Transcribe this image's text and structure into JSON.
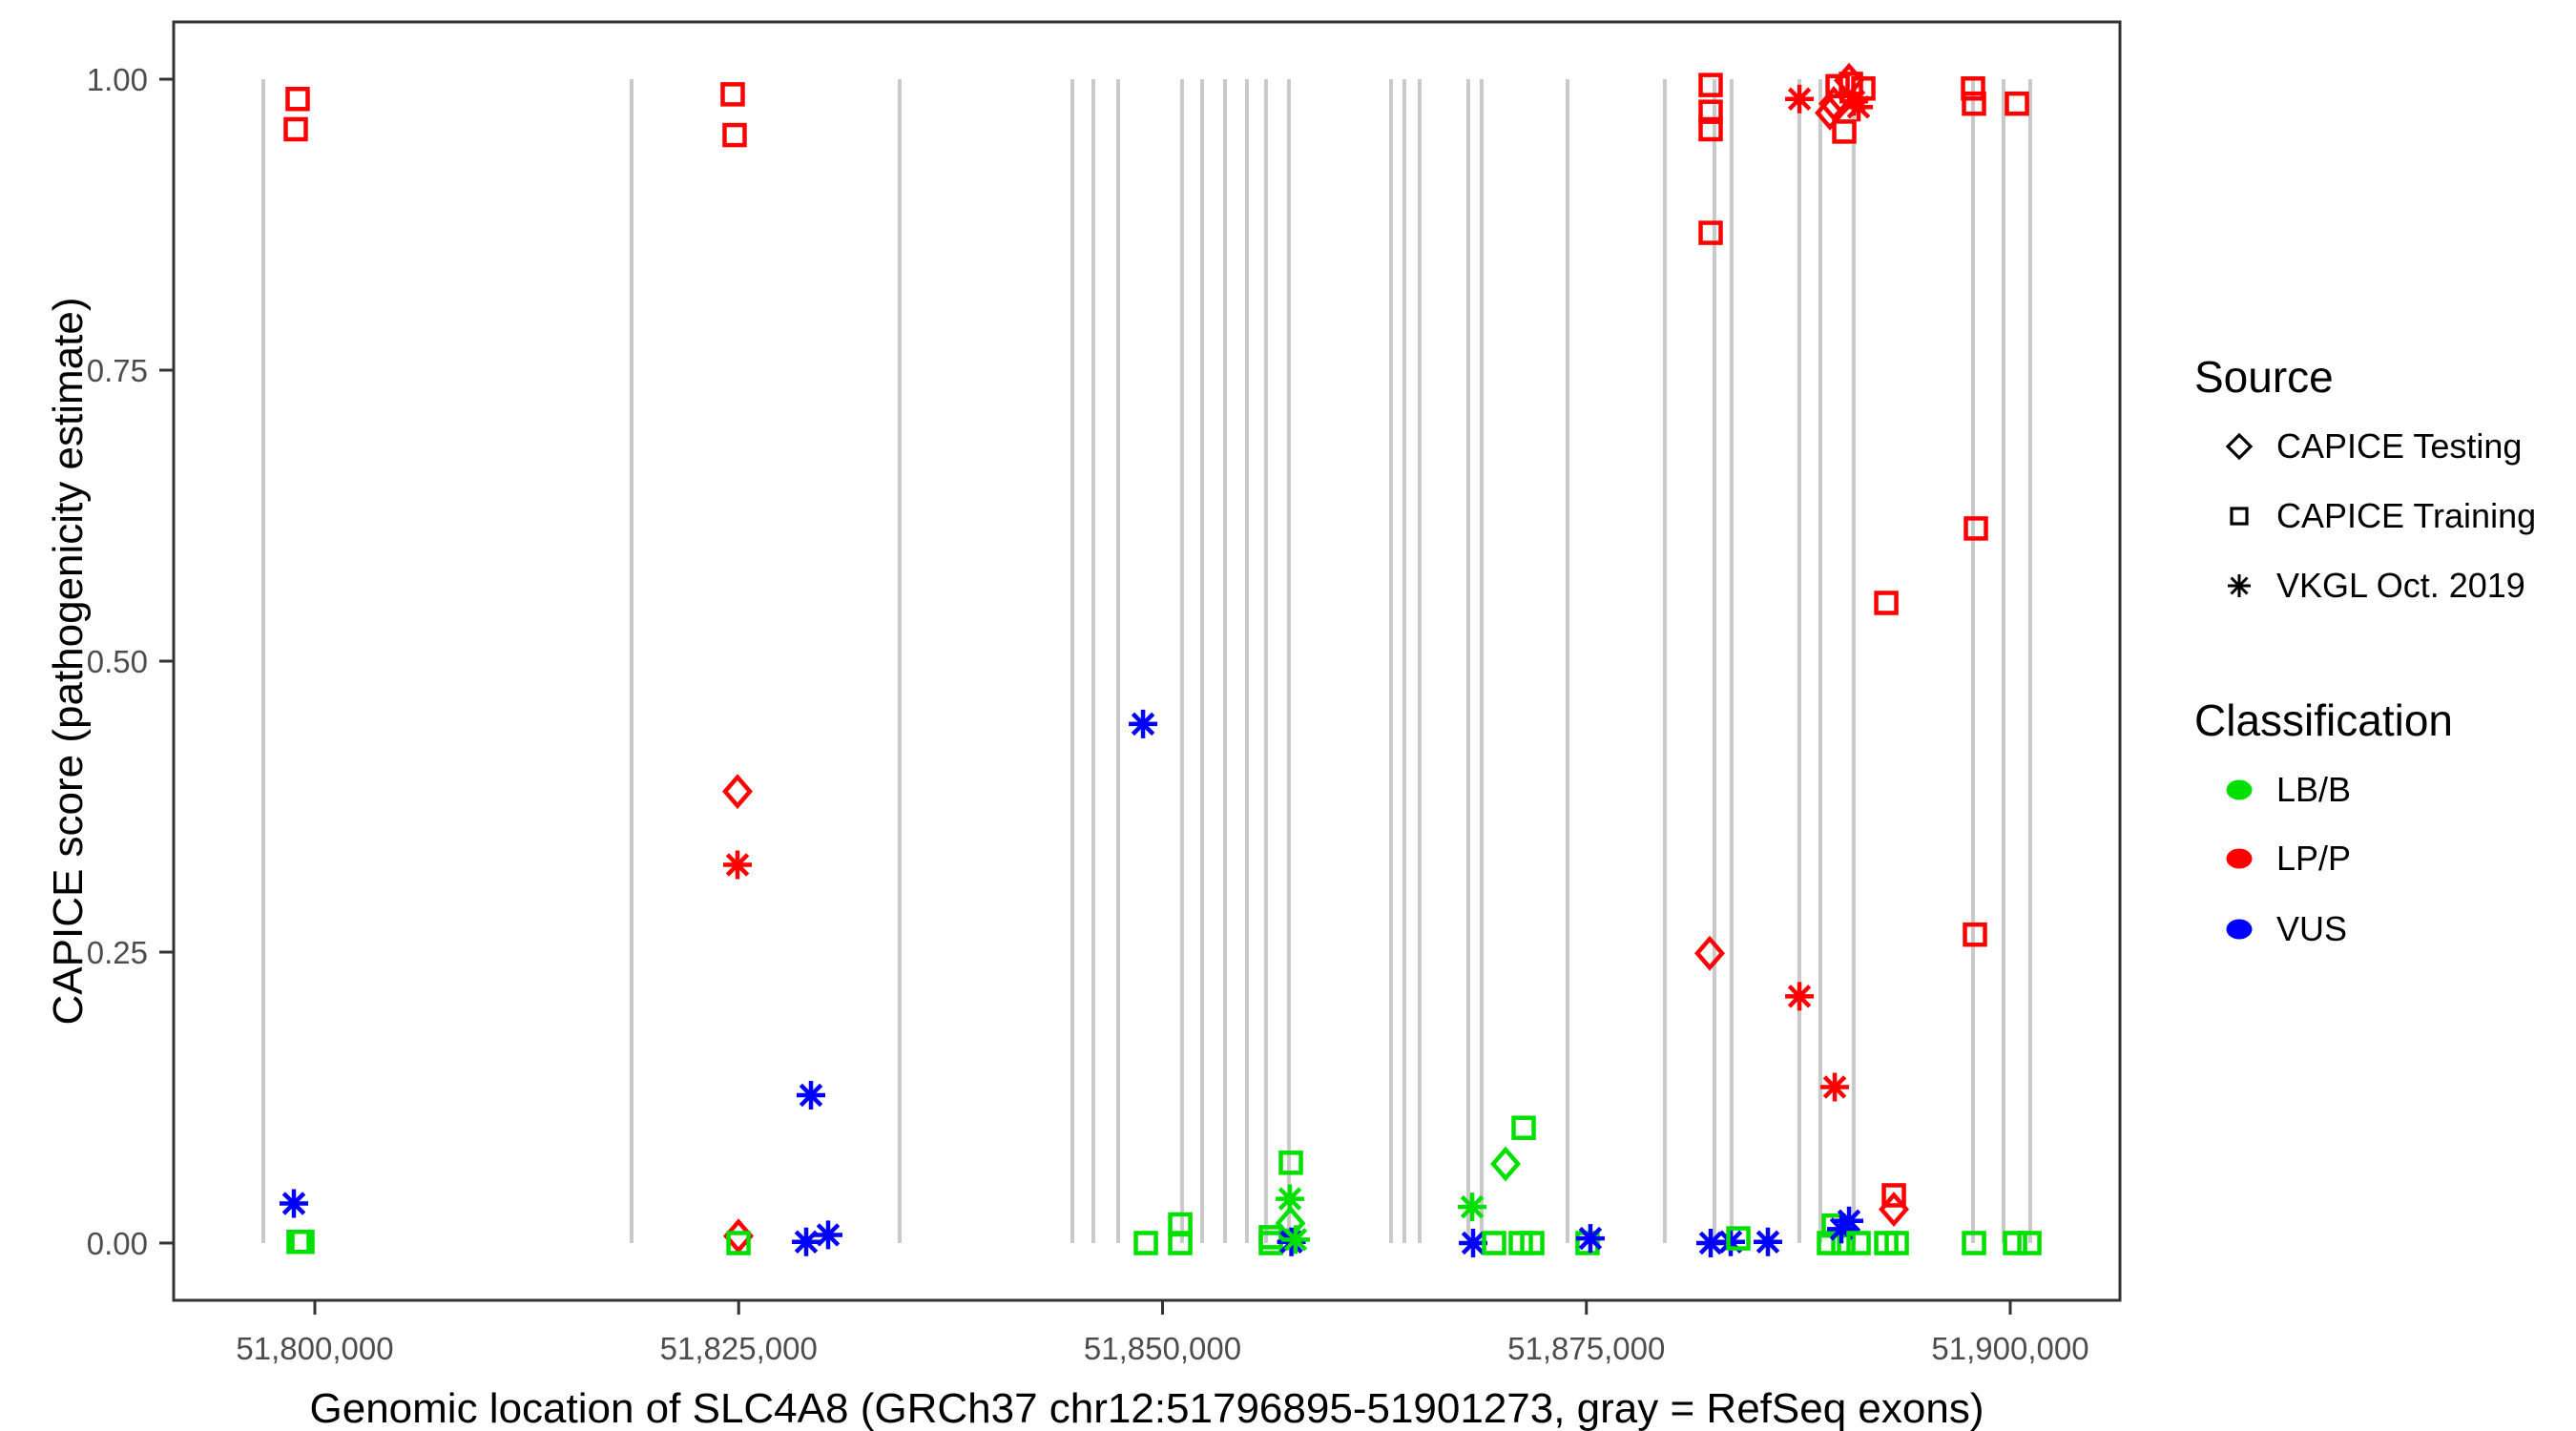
{
  "chart_data": {
    "type": "scatter",
    "title": "",
    "xlabel": "Genomic location of SLC4A8 (GRCh37 chr12:51796895-51901273, gray = RefSeq exons)",
    "ylabel": "CAPICE score (pathogenicity estimate)",
    "xlim": [
      51791672,
      51906471
    ],
    "ylim": [
      -0.0492,
      1.0492
    ],
    "grid": "none",
    "legend_position": "right",
    "x_ticks": [
      {
        "value": 51800000,
        "label": "51,800,000"
      },
      {
        "value": 51825000,
        "label": "51,825,000"
      },
      {
        "value": 51850000,
        "label": "51,850,000"
      },
      {
        "value": 51875000,
        "label": "51,875,000"
      },
      {
        "value": 51900000,
        "label": "51,900,000"
      }
    ],
    "y_ticks": [
      {
        "value": 0.0,
        "label": "0.00"
      },
      {
        "value": 0.25,
        "label": "0.25"
      },
      {
        "value": 0.5,
        "label": "0.50"
      },
      {
        "value": 0.75,
        "label": "0.75"
      },
      {
        "value": 1.0,
        "label": "1.00"
      }
    ],
    "exon_lines": {
      "description": "gray vertical segments = RefSeq exons, drawn from score 0 to 1",
      "color": "#c9c9c9",
      "y_span": [
        0,
        1
      ],
      "x": [
        51796961,
        51818683,
        51834496,
        51844681,
        51845919,
        51847382,
        51851152,
        51852334,
        51853684,
        51854979,
        51856104,
        51857455,
        51863476,
        51864263,
        51865164,
        51868034,
        51868821,
        51873885,
        51879625,
        51882551,
        51883564,
        51887560,
        51888798,
        51890768,
        51897802,
        51899603,
        51901178
      ]
    },
    "legend": {
      "source": {
        "title": "Source",
        "items": [
          {
            "label": "CAPICE Testing",
            "shape": "diamond"
          },
          {
            "label": "CAPICE Training",
            "shape": "square"
          },
          {
            "label": "VKGL Oct. 2019",
            "shape": "asterisk"
          }
        ]
      },
      "classification": {
        "title": "Classification",
        "items": [
          {
            "label": "LB/B",
            "color": "#00e000"
          },
          {
            "label": "LP/P",
            "color": "#ff0000"
          },
          {
            "label": "VUS",
            "color": "#0000ff"
          }
        ]
      }
    },
    "classification_colors": {
      "LB/B": "#00e000",
      "LP/P": "#ff0000",
      "VUS": "#0000ff"
    },
    "points_format": [
      "genomic_position",
      "capice_score",
      "shape(source)",
      "classification"
    ],
    "points": [
      [
        51798762,
        0.034,
        "asterisk",
        "VUS"
      ],
      [
        51798875,
        0.957,
        "square",
        "LP/P"
      ],
      [
        51798987,
        0.983,
        "square",
        "LP/P"
      ],
      [
        51799043,
        0.001,
        "square",
        "LB/B"
      ],
      [
        51799268,
        0.001,
        "square",
        "LB/B"
      ],
      [
        51824648,
        0.987,
        "square",
        "LP/P"
      ],
      [
        51824760,
        0.952,
        "square",
        "LP/P"
      ],
      [
        51824930,
        0.388,
        "diamond",
        "LP/P"
      ],
      [
        51824930,
        0.325,
        "asterisk",
        "LP/P"
      ],
      [
        51824986,
        0.006,
        "diamond",
        "LP/P"
      ],
      [
        51824990,
        0.0,
        "square",
        "LB/B"
      ],
      [
        51828982,
        0.001,
        "asterisk",
        "VUS"
      ],
      [
        51829263,
        0.127,
        "asterisk",
        "VUS"
      ],
      [
        51830276,
        0.007,
        "asterisk",
        "VUS"
      ],
      [
        51848850,
        0.446,
        "asterisk",
        "VUS"
      ],
      [
        51849017,
        0.0,
        "square",
        "LB/B"
      ],
      [
        51851043,
        0.016,
        "square",
        "LB/B"
      ],
      [
        51851043,
        0.0,
        "square",
        "LB/B"
      ],
      [
        51856388,
        0.005,
        "square",
        "LB/B"
      ],
      [
        51856388,
        0.0,
        "square",
        "LB/B"
      ],
      [
        51857513,
        0.038,
        "asterisk",
        "LB/B"
      ],
      [
        51857570,
        0.069,
        "square",
        "LB/B"
      ],
      [
        51857540,
        0.017,
        "diamond",
        "LB/B"
      ],
      [
        51857600,
        0.001,
        "asterisk",
        "VUS"
      ],
      [
        51857851,
        0.003,
        "asterisk",
        "LB/B"
      ],
      [
        51868262,
        0.031,
        "asterisk",
        "LB/B"
      ],
      [
        51868318,
        0.0,
        "asterisk",
        "VUS"
      ],
      [
        51869556,
        0.0,
        "square",
        "LB/B"
      ],
      [
        51870231,
        0.068,
        "diamond",
        "LB/B"
      ],
      [
        51871131,
        0.0,
        "square",
        "LB/B"
      ],
      [
        51871300,
        0.099,
        "square",
        "LB/B"
      ],
      [
        51871807,
        0.0,
        "square",
        "LB/B"
      ],
      [
        51875066,
        0.0,
        "square",
        "LB/B"
      ],
      [
        51875235,
        0.004,
        "asterisk",
        "VUS"
      ],
      [
        51882274,
        0.249,
        "diamond",
        "LP/P"
      ],
      [
        51882330,
        0.995,
        "square",
        "LP/P"
      ],
      [
        51882330,
        0.972,
        "square",
        "LP/P"
      ],
      [
        51882330,
        0.957,
        "square",
        "LP/P"
      ],
      [
        51882330,
        0.868,
        "square",
        "LP/P"
      ],
      [
        51882330,
        0.0,
        "asterisk",
        "VUS"
      ],
      [
        51883512,
        0.001,
        "asterisk",
        "VUS"
      ],
      [
        51883962,
        0.004,
        "square",
        "LB/B"
      ],
      [
        51885706,
        0.001,
        "asterisk",
        "VUS"
      ],
      [
        51887567,
        0.983,
        "asterisk",
        "LP/P"
      ],
      [
        51887567,
        0.212,
        "asterisk",
        "LP/P"
      ],
      [
        51889648,
        0.134,
        "asterisk",
        "LP/P"
      ],
      [
        51889366,
        0.971,
        "diamond",
        "LP/P"
      ],
      [
        51889591,
        0.979,
        "diamond",
        "LP/P"
      ],
      [
        51889816,
        0.994,
        "square",
        "LP/P"
      ],
      [
        51890210,
        0.955,
        "square",
        "LP/P"
      ],
      [
        51890492,
        0.999,
        "diamond",
        "LP/P"
      ],
      [
        51890604,
        0.996,
        "square",
        "LP/P"
      ],
      [
        51890773,
        0.981,
        "asterisk",
        "LP/P"
      ],
      [
        51891054,
        0.976,
        "asterisk",
        "LP/P"
      ],
      [
        51891336,
        0.992,
        "square",
        "LP/P"
      ],
      [
        51889310,
        0.0,
        "square",
        "LB/B"
      ],
      [
        51889591,
        0.015,
        "square",
        "LB/B"
      ],
      [
        51890154,
        0.0,
        "square",
        "LB/B"
      ],
      [
        51890040,
        0.012,
        "asterisk",
        "VUS"
      ],
      [
        51890492,
        0.019,
        "asterisk",
        "VUS"
      ],
      [
        51891055,
        0.0,
        "square",
        "LB/B"
      ],
      [
        51892687,
        0.55,
        "square",
        "LP/P"
      ],
      [
        51892687,
        0.0,
        "square",
        "LB/B"
      ],
      [
        51893306,
        0.0,
        "square",
        "LB/B"
      ],
      [
        51893136,
        0.041,
        "square",
        "LP/P"
      ],
      [
        51893136,
        0.029,
        "diamond",
        "LP/P"
      ],
      [
        51897807,
        0.992,
        "square",
        "LP/P"
      ],
      [
        51897863,
        0.979,
        "square",
        "LP/P"
      ],
      [
        51897919,
        0.265,
        "square",
        "LP/P"
      ],
      [
        51897975,
        0.614,
        "square",
        "LP/P"
      ],
      [
        51897863,
        0.0,
        "square",
        "LB/B"
      ],
      [
        51900283,
        0.0,
        "square",
        "LB/B"
      ],
      [
        51900395,
        0.979,
        "square",
        "LP/P"
      ],
      [
        51901127,
        0.0,
        "square",
        "LB/B"
      ]
    ],
    "style": {
      "panel_border_color": "#333333",
      "tick_label_color": "#4d4d4d",
      "background": "#ffffff"
    }
  }
}
